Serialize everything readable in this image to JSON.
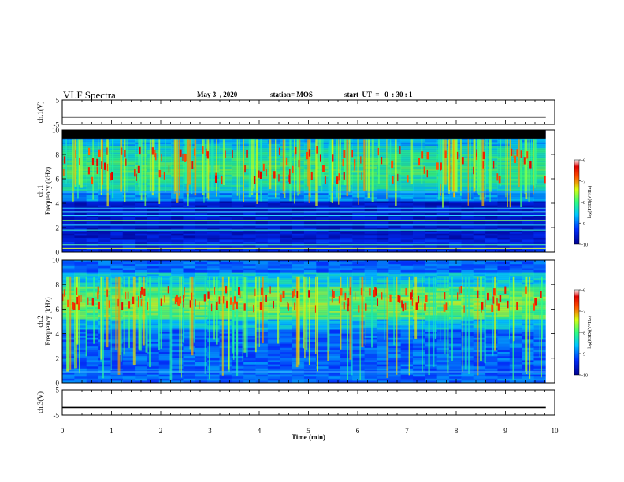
{
  "header": {
    "title": "VLF Spectra",
    "date": "May 3  , 2020",
    "station": "station= MOS",
    "start": "start  UT  =   0  : 30 : 1"
  },
  "chart_data": [
    {
      "type": "line",
      "panel": "ch1-waveform",
      "ylabel": "ch.1(V)",
      "ylim": [
        -5,
        5
      ],
      "yticks": [
        "5",
        "-5"
      ],
      "x": [
        0,
        9.82
      ],
      "values": [
        -2,
        -2
      ]
    },
    {
      "type": "heatmap",
      "panel": "ch1-spectrogram",
      "ylabel": "ch.1\nFrequency (kHz)",
      "ylabel_line1": "ch.1",
      "ylabel_line2": "Frequency (kHz)",
      "ylim": [
        0,
        10
      ],
      "yticks": [
        "0",
        "2",
        "4",
        "6",
        "8",
        "10"
      ],
      "xlim": [
        0,
        10
      ],
      "data_extent_min": 9.82,
      "band_khz": [
        5.0,
        8.6
      ],
      "top_cutoff_khz": 9.3,
      "colorbar": {
        "label": "log(PSD)(V²/Hz)",
        "ticks": [
          "-6",
          "-7",
          "-8",
          "-9",
          "-10"
        ],
        "range": [
          -10,
          -6
        ]
      }
    },
    {
      "type": "heatmap",
      "panel": "ch2-spectrogram",
      "ylabel": "ch.2\nFrequency (kHz)",
      "ylabel_line1": "ch.2",
      "ylabel_line2": "Frequency (kHz)",
      "ylim": [
        0,
        10
      ],
      "yticks": [
        "0",
        "2",
        "4",
        "6",
        "8",
        "10"
      ],
      "xlim": [
        0,
        10
      ],
      "data_extent_min": 9.82,
      "band_khz": [
        5.2,
        7.8
      ],
      "colorbar": {
        "label": "log(PSD)(V²/Hz)",
        "ticks": [
          "-6",
          "-7",
          "-8",
          "-9",
          "-10"
        ],
        "range": [
          -10,
          -6
        ]
      }
    },
    {
      "type": "line",
      "panel": "ch3-waveform",
      "ylabel": "ch.3(V)",
      "ylim": [
        -5,
        5
      ],
      "yticks": [
        "5",
        "-5"
      ],
      "x": [
        0,
        9.82
      ],
      "values": [
        -2,
        -2
      ]
    }
  ],
  "xaxis": {
    "label": "Time  (min)",
    "ticks": [
      "0",
      "1",
      "2",
      "3",
      "4",
      "5",
      "6",
      "7",
      "8",
      "9",
      "10"
    ],
    "range": [
      0,
      10
    ]
  }
}
